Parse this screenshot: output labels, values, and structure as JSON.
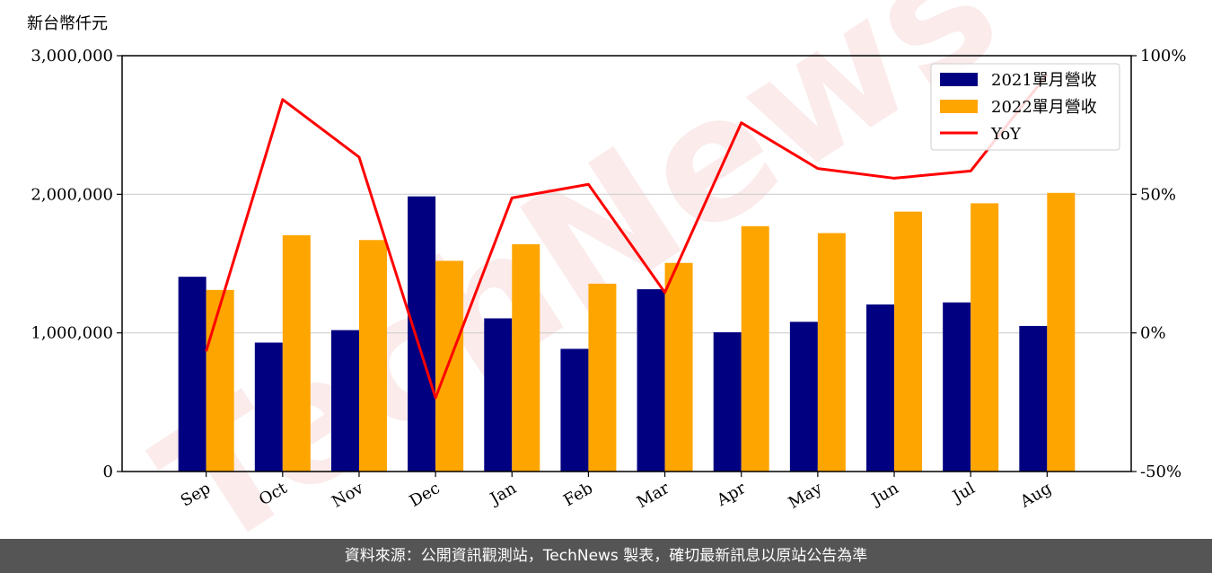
{
  "chart_data": {
    "type": "bar",
    "unit_label": "新台幣仟元",
    "categories": [
      "Sep",
      "Oct",
      "Nov",
      "Dec",
      "Jan",
      "Feb",
      "Mar",
      "Apr",
      "May",
      "Jun",
      "Jul",
      "Aug"
    ],
    "series": [
      {
        "name": "2021單月營收",
        "type": "bar",
        "axis": "left",
        "color": "#000080",
        "values": [
          1405000,
          930000,
          1020000,
          1985000,
          1105000,
          885000,
          1315000,
          1005000,
          1080000,
          1205000,
          1220000,
          1050000
        ]
      },
      {
        "name": "2022單月營收",
        "type": "bar",
        "axis": "left",
        "color": "#FFA500",
        "values": [
          1310000,
          1705000,
          1670000,
          1520000,
          1640000,
          1355000,
          1505000,
          1770000,
          1720000,
          1875000,
          1935000,
          2010000
        ]
      },
      {
        "name": "YoY",
        "type": "line",
        "axis": "right",
        "color": "#FF0000",
        "values": [
          -6.6,
          84.2,
          63.4,
          -23.4,
          48.7,
          53.6,
          14.6,
          75.8,
          59.3,
          55.8,
          58.4,
          93.2
        ]
      }
    ],
    "y_left": {
      "ylim": [
        0,
        3000000
      ],
      "ticks": [
        0,
        1000000,
        2000000,
        3000000
      ],
      "tick_labels": [
        "0",
        "1,000,000",
        "2,000,000",
        "3,000,000"
      ]
    },
    "y_right": {
      "ylim": [
        -50,
        100
      ],
      "ticks": [
        -50,
        0,
        50,
        100
      ],
      "tick_labels": [
        "-50%",
        "0%",
        "50%",
        "100%"
      ]
    },
    "grid": true,
    "legend_position": "top-right"
  },
  "watermark": "TechNews",
  "footer": {
    "text": "資料來源：公開資訊觀測站，TechNews 製表，確切最新訊息以原站公告為準"
  }
}
